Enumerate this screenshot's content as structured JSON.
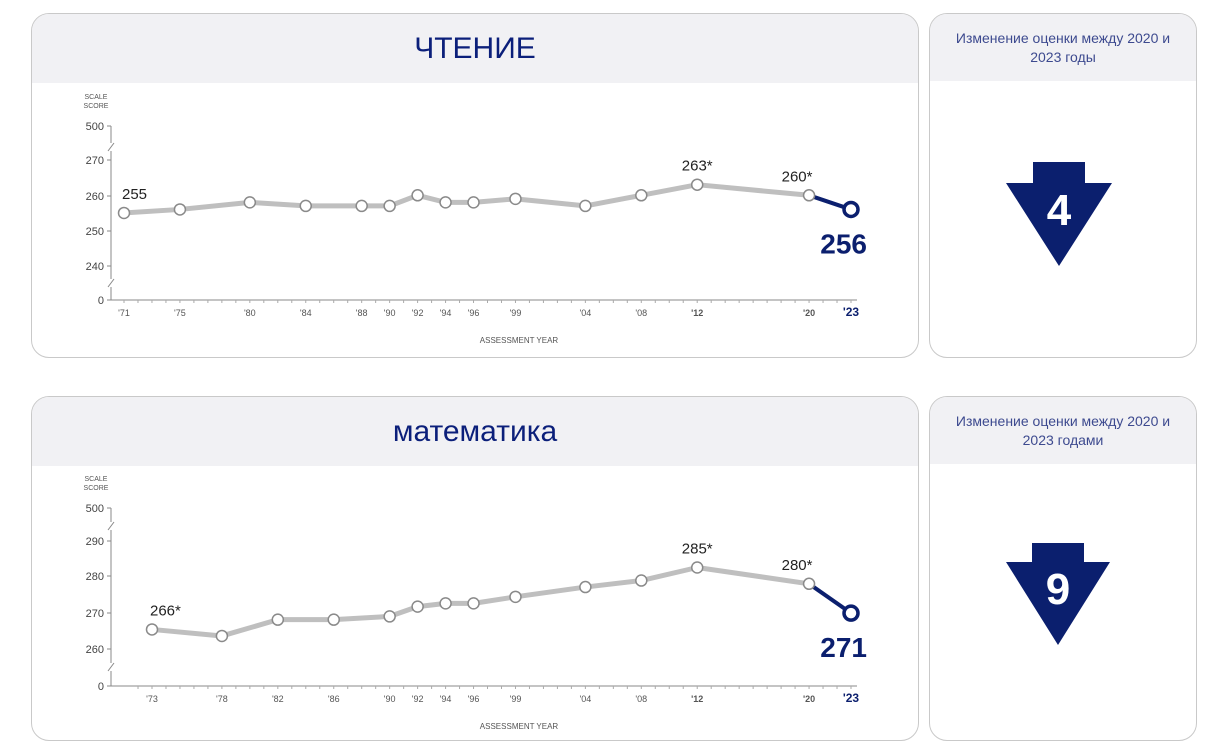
{
  "colors": {
    "accent": "#0b1f6e",
    "line": "#bfbfbf",
    "marker_fill": "#ffffff",
    "marker_stroke": "#8a8a8a"
  },
  "chart_data": [
    {
      "type": "line",
      "title": "ЧТЕНИЕ",
      "ylabel": "SCALE SCORE",
      "xlabel": "ASSESSMENT YEAR",
      "y_ticks": [
        "500",
        "270",
        "260",
        "250",
        "240",
        "0"
      ],
      "broken_axis": true,
      "x_tick_labels": [
        "'71",
        "'75",
        "'80",
        "'84",
        "'88",
        "'90",
        "'92",
        "'94",
        "'96",
        "'99",
        "'04",
        "'08",
        "'12",
        "'20",
        "'23"
      ],
      "series": [
        {
          "x": [
            1971,
            1975,
            1980,
            1984,
            1988,
            1990,
            1992,
            1994,
            1996,
            1999,
            2004,
            2008,
            2012,
            2020
          ],
          "values": [
            255,
            256,
            258,
            257,
            257,
            257,
            260,
            258,
            258,
            259,
            257,
            260,
            263,
            260
          ]
        }
      ],
      "highlight": {
        "x": 2023,
        "value": 256,
        "label": "256"
      },
      "data_labels": [
        {
          "x": 1971,
          "value": 255,
          "label": "255"
        },
        {
          "x": 2012,
          "value": 263,
          "label": "263*"
        },
        {
          "x": 2020,
          "value": 260,
          "label": "260*"
        }
      ]
    },
    {
      "type": "line",
      "title": "математика",
      "ylabel": "SCALE SCORE",
      "xlabel": "ASSESSMENT YEAR",
      "y_ticks": [
        "500",
        "290",
        "280",
        "270",
        "260",
        "0"
      ],
      "broken_axis": true,
      "x_tick_labels": [
        "'73",
        "'78",
        "'82",
        "'86",
        "'90",
        "'92",
        "'94",
        "'96",
        "'99",
        "'04",
        "'08",
        "'12",
        "'20",
        "'23"
      ],
      "series": [
        {
          "x": [
            1973,
            1978,
            1982,
            1986,
            1990,
            1992,
            1994,
            1996,
            1999,
            2004,
            2008,
            2012,
            2020
          ],
          "values": [
            266,
            264,
            269,
            269,
            270,
            273,
            274,
            274,
            276,
            279,
            281,
            285,
            280
          ]
        }
      ],
      "highlight": {
        "x": 2023,
        "value": 271,
        "label": "271"
      },
      "data_labels": [
        {
          "x": 1973,
          "value": 266,
          "label": "266*"
        },
        {
          "x": 2012,
          "value": 285,
          "label": "285*"
        },
        {
          "x": 2020,
          "value": 280,
          "label": "280*"
        }
      ]
    }
  ],
  "changes": [
    {
      "title": "Изменение оценки между 2020 и 2023 годы",
      "value": "4",
      "direction": "down"
    },
    {
      "title": "Изменение оценки между 2020 и 2023 годами",
      "value": "9",
      "direction": "down"
    }
  ]
}
